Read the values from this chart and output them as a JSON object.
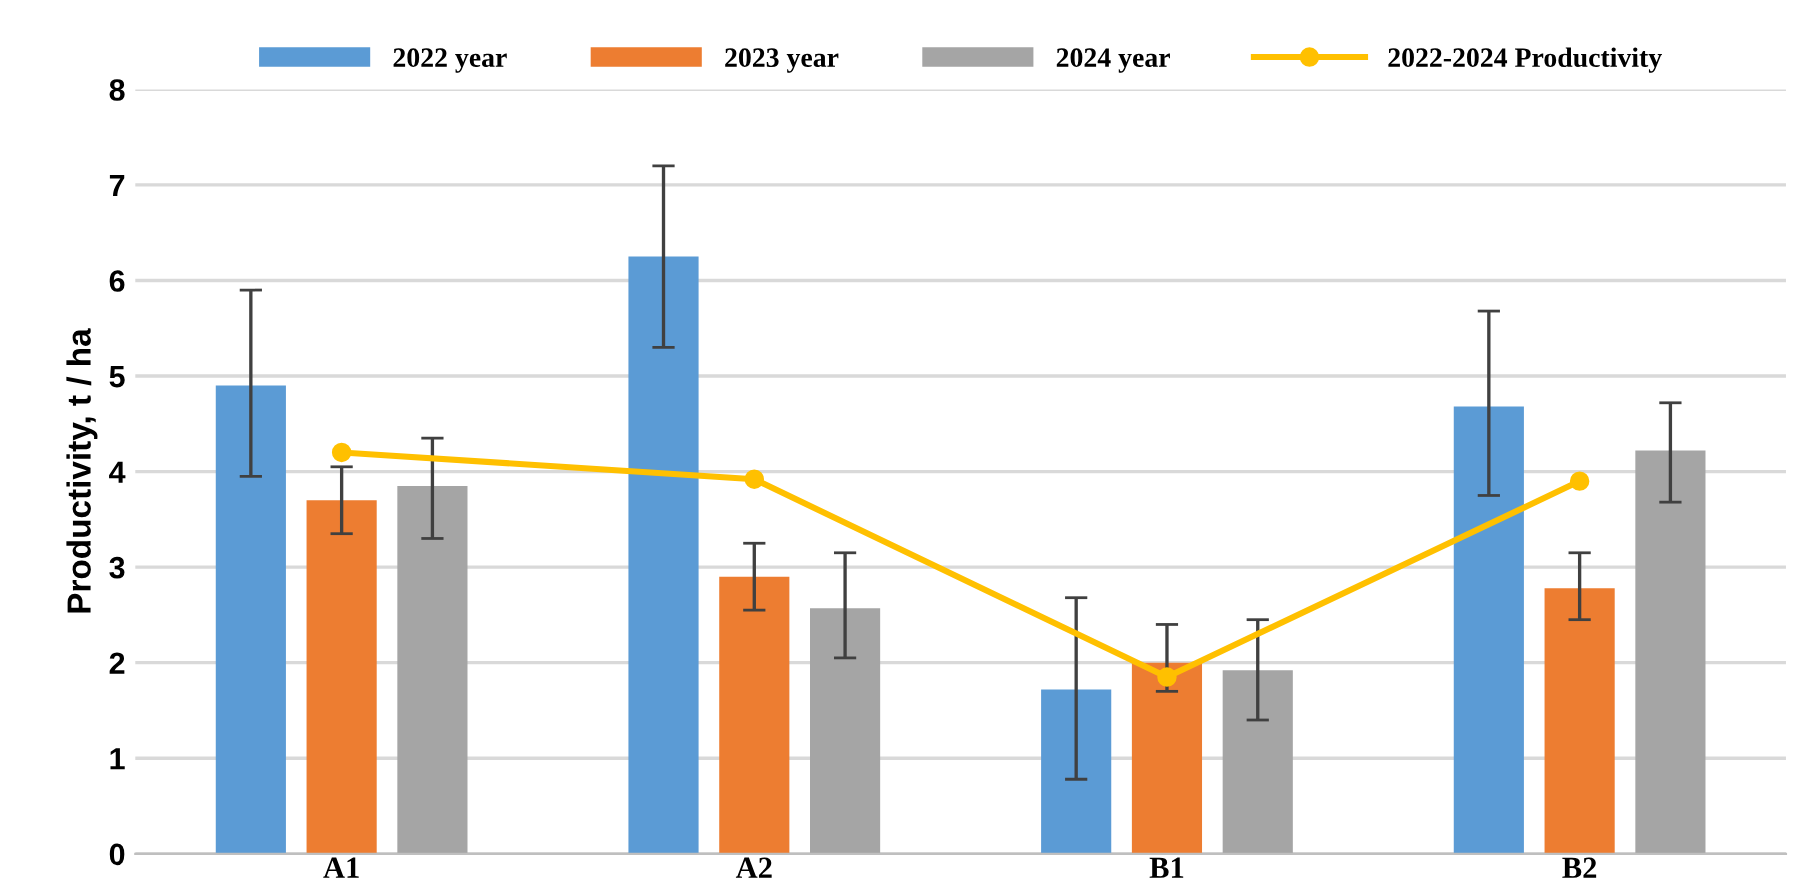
{
  "chart_data": {
    "type": "bar",
    "ylabel": "Productivity, t / ha",
    "categories": [
      "A1",
      "A2",
      "B1",
      "B2"
    ],
    "series": [
      {
        "name": "2022 year",
        "color": "#5b9bd5",
        "values": [
          4.9,
          6.25,
          1.72,
          4.68
        ],
        "errors": [
          [
            3.95,
            5.9
          ],
          [
            5.3,
            7.2
          ],
          [
            0.78,
            2.68
          ],
          [
            3.75,
            5.68
          ]
        ]
      },
      {
        "name": "2023 year",
        "color": "#ed7d31",
        "values": [
          3.7,
          2.9,
          2.0,
          2.78
        ],
        "errors": [
          [
            3.35,
            4.05
          ],
          [
            2.55,
            3.25
          ],
          [
            1.7,
            2.4
          ],
          [
            2.45,
            3.15
          ]
        ]
      },
      {
        "name": "2024 year",
        "color": "#a5a5a5",
        "values": [
          3.85,
          2.57,
          1.92,
          4.22
        ],
        "errors": [
          [
            3.3,
            4.35
          ],
          [
            2.05,
            3.15
          ],
          [
            1.4,
            2.45
          ],
          [
            3.68,
            4.72
          ]
        ]
      },
      {
        "name": "2022-2024 Productivity",
        "type": "line",
        "color": "#ffc000",
        "marker": "circle",
        "values": [
          4.2,
          3.92,
          1.85,
          3.9
        ]
      }
    ],
    "ylim": [
      0,
      8
    ],
    "yticks": [
      0,
      1,
      2,
      3,
      4,
      5,
      6,
      7,
      8
    ],
    "grid": "y",
    "legend": "top"
  }
}
